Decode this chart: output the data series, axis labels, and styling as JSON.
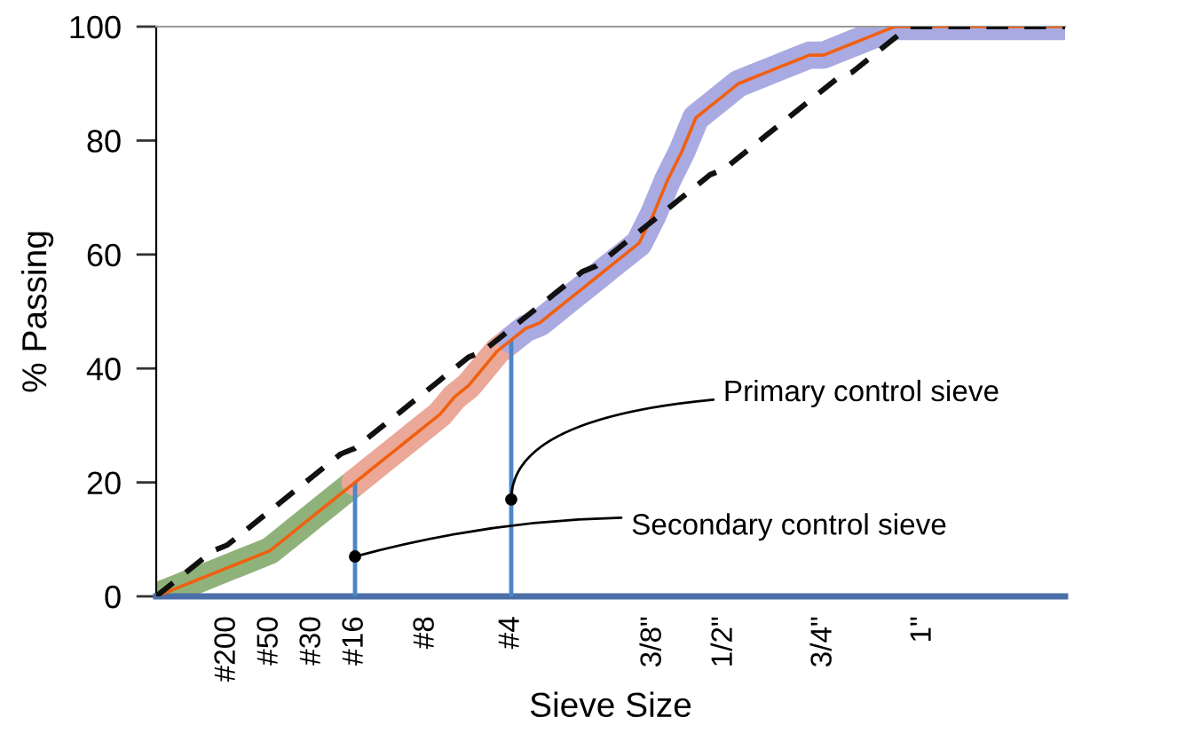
{
  "chart_data": {
    "type": "line",
    "xlabel": "Sieve Size",
    "ylabel": "% Passing",
    "ylim": [
      0,
      100
    ],
    "yticks": [
      0,
      20,
      40,
      60,
      80,
      100
    ],
    "grid": false,
    "marker": "none",
    "categories": [
      null,
      null,
      null,
      null,
      null,
      "#200",
      null,
      null,
      "#50",
      null,
      null,
      "#30",
      null,
      null,
      "#16",
      null,
      null,
      null,
      null,
      "#8",
      null,
      null,
      null,
      null,
      null,
      "#4",
      null,
      null,
      null,
      null,
      null,
      null,
      null,
      null,
      null,
      "3/8\"",
      null,
      null,
      null,
      null,
      "1/2\"",
      null,
      null,
      null,
      null,
      null,
      null,
      "3/4\"",
      null,
      null,
      null,
      null,
      null,
      null,
      "1\"",
      null,
      null,
      null,
      null,
      null,
      null,
      null,
      null,
      null,
      null
    ],
    "series": [
      {
        "color": "#8fb27a",
        "values": [
          0,
          1,
          2,
          3,
          4,
          5,
          6,
          7,
          8,
          10,
          12,
          14,
          16,
          18,
          20,
          null,
          null,
          null,
          null,
          null,
          null,
          null,
          null,
          null,
          null,
          null,
          null,
          null,
          null,
          null,
          null,
          null,
          null,
          null,
          null,
          null,
          null,
          null,
          null,
          null,
          null,
          null,
          null,
          null,
          null,
          null,
          null,
          null,
          null,
          null,
          null,
          null,
          null,
          null,
          null,
          null,
          null,
          null,
          null,
          null,
          null,
          null,
          null,
          null,
          null
        ]
      },
      {
        "color": "#eba898",
        "values": [
          null,
          null,
          null,
          null,
          null,
          null,
          null,
          null,
          null,
          null,
          null,
          null,
          null,
          null,
          20,
          22,
          24,
          26,
          28,
          30,
          32,
          35,
          37,
          40,
          43,
          45,
          null,
          null,
          null,
          null,
          null,
          null,
          null,
          null,
          null,
          null,
          null,
          null,
          null,
          null,
          null,
          null,
          null,
          null,
          null,
          null,
          null,
          null,
          null,
          null,
          null,
          null,
          null,
          null,
          null,
          null,
          null,
          null,
          null,
          null,
          null,
          null,
          null,
          null,
          null
        ]
      },
      {
        "color": "#aaaae2",
        "values": [
          null,
          null,
          null,
          null,
          null,
          null,
          null,
          null,
          null,
          null,
          null,
          null,
          null,
          null,
          null,
          null,
          null,
          null,
          null,
          null,
          null,
          null,
          null,
          null,
          null,
          45,
          47,
          48,
          50,
          52,
          54,
          56,
          58,
          60,
          62,
          67,
          73,
          78,
          84,
          86,
          88,
          90,
          91,
          92,
          93,
          94,
          95,
          95,
          96,
          97,
          98,
          99,
          100,
          100,
          100,
          100,
          100,
          100,
          100,
          100,
          100,
          100,
          100,
          100,
          100
        ]
      },
      {
        "color": "#f06010",
        "values": [
          0,
          1,
          2,
          3,
          4,
          5,
          6,
          7,
          8,
          10,
          12,
          14,
          16,
          18,
          20,
          22,
          24,
          26,
          28,
          30,
          32,
          35,
          37,
          40,
          43,
          45,
          47,
          48,
          50,
          52,
          54,
          56,
          58,
          60,
          62,
          67,
          73,
          78,
          84,
          86,
          88,
          90,
          91,
          92,
          93,
          94,
          95,
          95,
          96,
          97,
          98,
          99,
          100,
          100,
          100,
          100,
          100,
          100,
          100,
          100,
          100,
          100,
          100,
          100,
          100
        ]
      },
      {
        "color": "#111111",
        "line_style": "dashed",
        "values": [
          0,
          2,
          4,
          6,
          8,
          9,
          11,
          13,
          15,
          17,
          19,
          21,
          23,
          25,
          26,
          28,
          30,
          32,
          34,
          36,
          38,
          40,
          42,
          43,
          45,
          47,
          49,
          51,
          53,
          55,
          57,
          58,
          60,
          62,
          64,
          66,
          68,
          70,
          72,
          74,
          75,
          77,
          79,
          81,
          83,
          85,
          87,
          89,
          91,
          92,
          94,
          96,
          98,
          100,
          100,
          100,
          100,
          100,
          100,
          100,
          100,
          100,
          100,
          100,
          100
        ]
      },
      {
        "type": "bar",
        "color": "#4a86c8",
        "values": [
          null,
          null,
          null,
          null,
          null,
          null,
          null,
          null,
          null,
          null,
          null,
          null,
          null,
          null,
          20,
          null,
          null,
          null,
          null,
          null,
          null,
          null,
          null,
          null,
          null,
          45,
          null,
          null,
          null,
          null,
          null,
          null,
          null,
          null,
          null,
          null,
          null,
          null,
          null,
          null,
          null,
          null,
          null,
          null,
          null,
          null,
          null,
          null,
          null,
          null,
          null,
          null,
          null,
          null,
          null,
          null,
          null,
          null,
          null,
          null,
          null,
          null,
          null,
          null,
          null
        ]
      }
    ],
    "annotations": [
      {
        "text": "Primary control sieve",
        "x": "#4",
        "y": 17
      },
      {
        "text": "Secondary control sieve",
        "x": "#16",
        "y": 7
      }
    ]
  }
}
